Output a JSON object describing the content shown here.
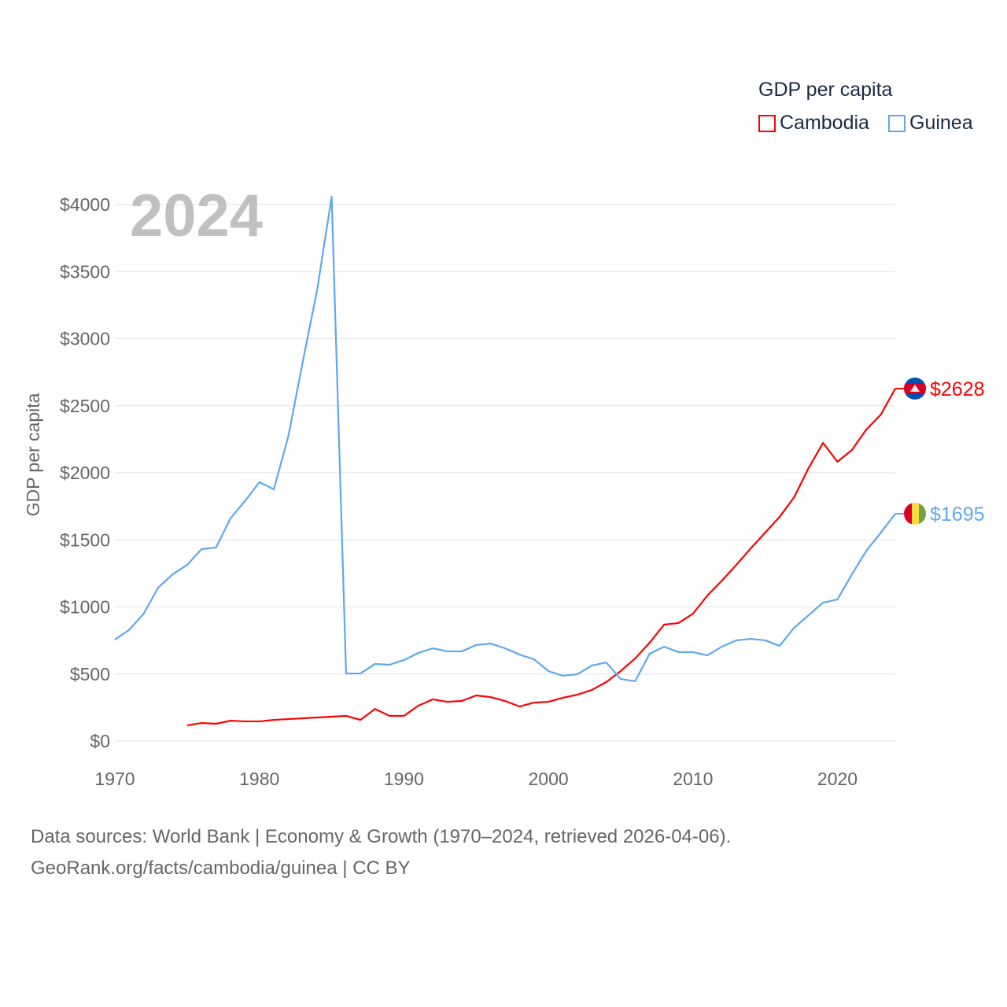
{
  "chart_data": {
    "type": "line",
    "title": "GDP per capita",
    "year_label": "2024",
    "ylabel": "GDP per capita",
    "xlabel": "",
    "xlim": [
      1970,
      2024
    ],
    "ylim": [
      0,
      4000
    ],
    "x_ticks": [
      1970,
      1980,
      1990,
      2000,
      2010,
      2020
    ],
    "x_tick_labels": [
      "1970",
      "1980",
      "1990",
      "2000",
      "2010",
      "2020"
    ],
    "y_ticks": [
      0,
      500,
      1000,
      1500,
      2000,
      2500,
      3000,
      3500,
      4000
    ],
    "y_tick_labels": [
      "$0",
      "$500",
      "$1000",
      "$1500",
      "$2000",
      "$2500",
      "$3000",
      "$3500",
      "$4000"
    ],
    "grid": true,
    "legend_placement": "top-right",
    "series": [
      {
        "name": "Cambodia",
        "color": "#ff0000",
        "end_label": "$2628",
        "flag": "cambodia",
        "start_year": 1975,
        "values": [
          117,
          135,
          129,
          152,
          147,
          147,
          158,
          164,
          170,
          176,
          182,
          188,
          158,
          240,
          188,
          188,
          264,
          311,
          293,
          299,
          340,
          328,
          299,
          258,
          287,
          293,
          323,
          346,
          381,
          440,
          522,
          616,
          733,
          868,
          880,
          950,
          1085,
          1196,
          1314,
          1437,
          1554,
          1672,
          1818,
          2035,
          2223,
          2082,
          2170,
          2323,
          2434,
          2628
        ]
      },
      {
        "name": "Guinea",
        "color": "#5ea8ee",
        "end_label": "$1695",
        "flag": "guinea",
        "start_year": 1970,
        "values": [
          757,
          830,
          950,
          1144,
          1243,
          1314,
          1431,
          1443,
          1660,
          1789,
          1930,
          1877,
          2270,
          2827,
          3366,
          4059,
          504,
          504,
          575,
          569,
          604,
          657,
          692,
          669,
          669,
          716,
          727,
          692,
          645,
          610,
          522,
          487,
          498,
          563,
          586,
          463,
          446,
          651,
          704,
          663,
          663,
          639,
          704,
          751,
          762,
          751,
          710,
          845,
          938,
          1032,
          1056,
          1243,
          1419,
          1554,
          1695
        ]
      }
    ]
  },
  "footer": {
    "line1": "Data sources: World Bank | Economy & Growth (1970–2024, retrieved 2026-04-06).",
    "line2": "GeoRank.org/facts/cambodia/guinea | CC BY"
  }
}
